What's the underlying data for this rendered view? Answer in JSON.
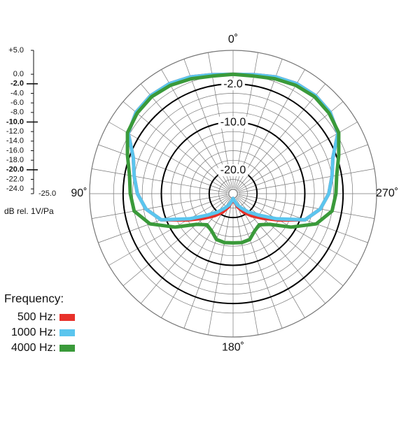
{
  "chart_data": {
    "type": "polar",
    "x": [
      0,
      10,
      20,
      30,
      40,
      50,
      60,
      70,
      80,
      90,
      100,
      110,
      120,
      130,
      140,
      150,
      160,
      170,
      180,
      190,
      200,
      210,
      220,
      230,
      240,
      250,
      260,
      270,
      280,
      290,
      300,
      310,
      320,
      330,
      340,
      350
    ],
    "rlim": [
      -25,
      5
    ],
    "rticks": [
      {
        "value": 5,
        "label": "+5.0"
      },
      {
        "value": 0,
        "label": "0.0"
      },
      {
        "value": -2,
        "label": "-2.0"
      },
      {
        "value": -4,
        "label": "-4.0"
      },
      {
        "value": -6,
        "label": "-6.0"
      },
      {
        "value": -8,
        "label": "-8.0"
      },
      {
        "value": -10,
        "label": "-10.0"
      },
      {
        "value": -12,
        "label": "-12.0"
      },
      {
        "value": -14,
        "label": "-14.0"
      },
      {
        "value": -16,
        "label": "-16.0"
      },
      {
        "value": -18,
        "label": "-18.0"
      },
      {
        "value": -20,
        "label": "-20.0"
      },
      {
        "value": -22,
        "label": "-22.0"
      },
      {
        "value": -24,
        "label": "-24.0"
      },
      {
        "value": -25,
        "label": "-25.0"
      }
    ],
    "bold_rings": [
      -2,
      -10,
      -20
    ],
    "axis_label": "dB rel. 1V/Pa",
    "angle_labels": [
      {
        "value": 0,
        "label": "0˚"
      },
      {
        "value": 90,
        "label": "90˚"
      },
      {
        "value": 180,
        "label": "180˚"
      },
      {
        "value": 270,
        "label": "270˚"
      }
    ],
    "legend_title": "Frequency:",
    "series": [
      {
        "name": "500 Hz:",
        "color": "#e8312a",
        "values": [
          0,
          0.3,
          1,
          1.6,
          1.8,
          1.5,
          0.3,
          -2.8,
          -4,
          -5,
          -6.5,
          -9,
          -14,
          -17,
          -19,
          -20.5,
          -22,
          -23.3,
          -24,
          -23.3,
          -22,
          -20.5,
          -19,
          -17,
          -14,
          -9,
          -6.5,
          -5,
          -4,
          -2.8,
          0.3,
          1.5,
          1.8,
          1.6,
          1,
          0.3
        ]
      },
      {
        "name": "1000 Hz:",
        "color": "#5bc5ee",
        "values": [
          0,
          0.3,
          1,
          1.6,
          1.8,
          1.5,
          0.3,
          -2.8,
          -4,
          -5,
          -6.5,
          -9,
          -14.5,
          -18,
          -20,
          -21.5,
          -22.5,
          -23.5,
          -24,
          -23.5,
          -22.5,
          -21.5,
          -20,
          -18,
          -14.5,
          -9,
          -6.5,
          -5,
          -4,
          -2.8,
          0.3,
          1.5,
          1.8,
          1.6,
          1,
          0.3
        ]
      },
      {
        "name": "4000 Hz:",
        "color": "#3a9a3a",
        "values": [
          0,
          0,
          0.6,
          1.2,
          1.5,
          1.2,
          0.5,
          -1.5,
          -3,
          -3.5,
          -4,
          -6.5,
          -11,
          -15,
          -16.5,
          -16,
          -14.8,
          -14.6,
          -14.7,
          -14.6,
          -14.8,
          -16,
          -16.5,
          -15,
          -11,
          -6.5,
          -4,
          -3.5,
          -3,
          -1.5,
          0.5,
          1.2,
          1.5,
          1.2,
          0.6,
          0
        ]
      }
    ]
  }
}
